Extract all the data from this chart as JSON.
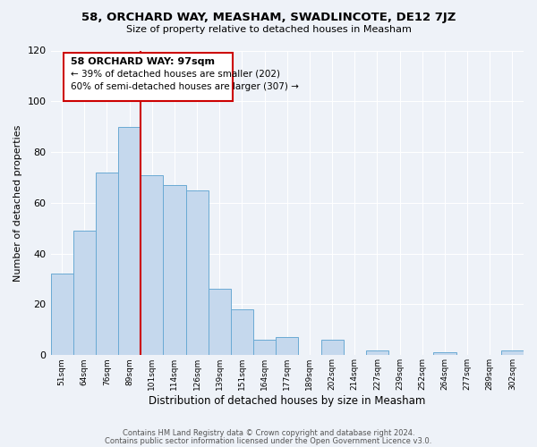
{
  "title": "58, ORCHARD WAY, MEASHAM, SWADLINCOTE, DE12 7JZ",
  "subtitle": "Size of property relative to detached houses in Measham",
  "xlabel": "Distribution of detached houses by size in Measham",
  "ylabel": "Number of detached properties",
  "bar_labels": [
    "51sqm",
    "64sqm",
    "76sqm",
    "89sqm",
    "101sqm",
    "114sqm",
    "126sqm",
    "139sqm",
    "151sqm",
    "164sqm",
    "177sqm",
    "189sqm",
    "202sqm",
    "214sqm",
    "227sqm",
    "239sqm",
    "252sqm",
    "264sqm",
    "277sqm",
    "289sqm",
    "302sqm"
  ],
  "bar_values": [
    32,
    49,
    72,
    90,
    71,
    67,
    65,
    26,
    18,
    6,
    7,
    0,
    6,
    0,
    2,
    0,
    0,
    1,
    0,
    0,
    2
  ],
  "bar_color": "#c5d8ed",
  "bar_edge_color": "#6aaad4",
  "ylim": [
    0,
    120
  ],
  "yticks": [
    0,
    20,
    40,
    60,
    80,
    100,
    120
  ],
  "annotation_title": "58 ORCHARD WAY: 97sqm",
  "annotation_line1": "← 39% of detached houses are smaller (202)",
  "annotation_line2": "60% of semi-detached houses are larger (307) →",
  "box_color": "#cc0000",
  "footer1": "Contains HM Land Registry data © Crown copyright and database right 2024.",
  "footer2": "Contains public sector information licensed under the Open Government Licence v3.0.",
  "background_color": "#eef2f8",
  "grid_color": "#ffffff"
}
